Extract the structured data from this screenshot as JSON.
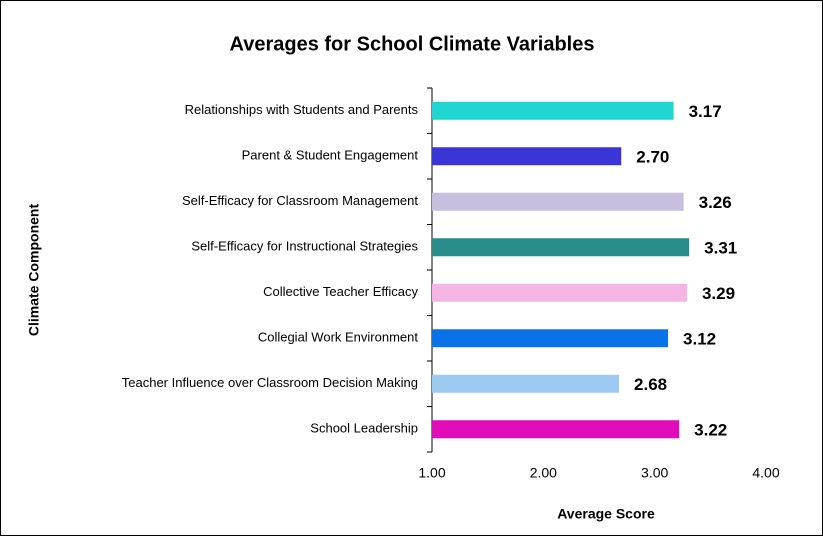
{
  "chart_data": {
    "type": "hbar",
    "title": "Averages for School Climate Variables",
    "x_label": "Average Score",
    "y_label": "Climate Component",
    "categories": [
      "Relationships with Students and Parents",
      "Parent & Student Engagement",
      "Self-Efficacy for Classroom Management",
      "Self-Efficacy for Instructional Strategies",
      "Collective Teacher Efficacy",
      "Collegial Work Environment",
      "Teacher Influence over Classroom Decision Making",
      "School Leadership"
    ],
    "values": [
      3.17,
      2.7,
      3.26,
      3.31,
      3.29,
      3.12,
      2.68,
      3.22
    ],
    "value_labels": [
      "3.17",
      "2.70",
      "3.26",
      "3.31",
      "3.29",
      "3.12",
      "2.68",
      "3.22"
    ],
    "colors": [
      "#1fd6d0",
      "#3a35d6",
      "#c8bedd",
      "#2a8c88",
      "#f4b4e4",
      "#0a72e8",
      "#9ccaf0",
      "#e00cb8"
    ],
    "xlim": [
      1,
      4
    ],
    "xticks": [
      {
        "value": 1,
        "label": "1.00"
      },
      {
        "value": 2,
        "label": "2.00"
      },
      {
        "value": 3,
        "label": "3.00"
      },
      {
        "value": 4,
        "label": "4.00"
      }
    ],
    "grid": false
  }
}
